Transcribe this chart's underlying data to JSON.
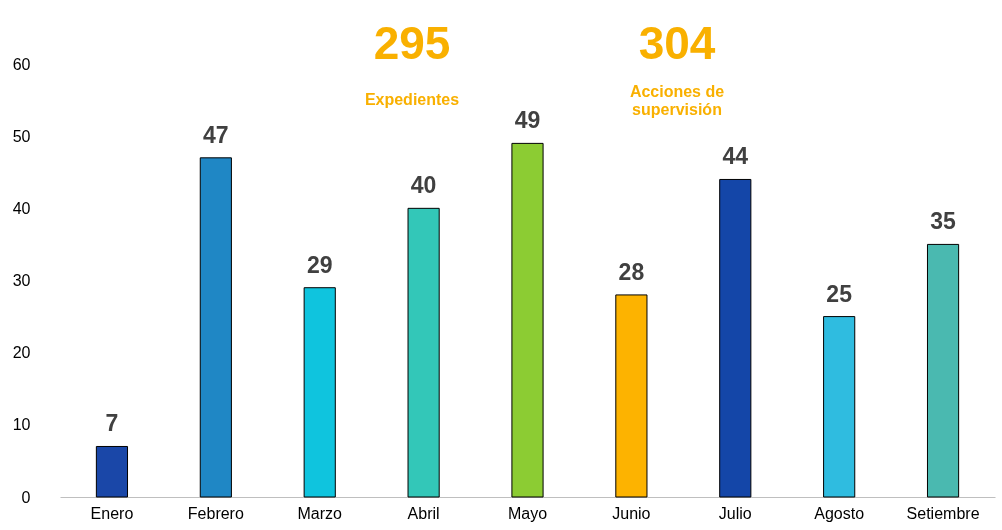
{
  "chart_data": {
    "type": "bar",
    "categories": [
      "Enero",
      "Febrero",
      "Marzo",
      "Abril",
      "Mayo",
      "Junio",
      "Julio",
      "Agosto",
      "Setiembre"
    ],
    "values": [
      7,
      47,
      29,
      40,
      49,
      28,
      44,
      25,
      35
    ],
    "colors": [
      "#1a47a8",
      "#1f87c5",
      "#0fc4de",
      "#33c7b8",
      "#8ccc33",
      "#fdb300",
      "#1446a8",
      "#2fbce0",
      "#4ab9b0"
    ],
    "ylim": [
      0,
      60
    ],
    "yticks": [
      0,
      10,
      20,
      30,
      40,
      50,
      60
    ],
    "grid": false,
    "data_labels": true,
    "annotations": [
      "295",
      "Expedientes",
      "304",
      "Acciones de\nsupervisión"
    ]
  }
}
